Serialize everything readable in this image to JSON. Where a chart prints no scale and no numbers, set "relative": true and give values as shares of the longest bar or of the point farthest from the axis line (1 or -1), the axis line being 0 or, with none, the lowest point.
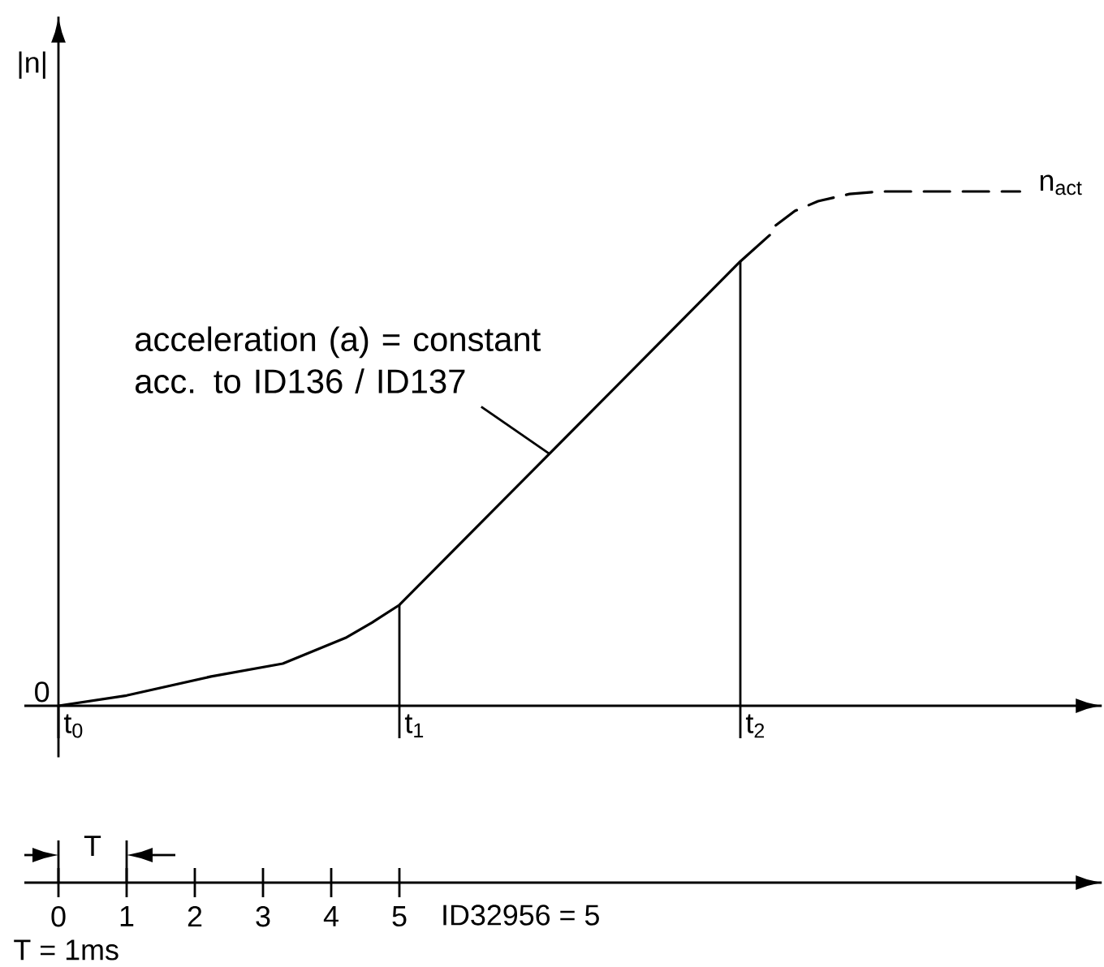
{
  "chart_data": {
    "type": "line",
    "relative": true,
    "ylabel": "|n|",
    "xlim": [
      -0.5,
      15.3
    ],
    "xticks": [
      0,
      1,
      2,
      3,
      4,
      5
    ],
    "xlabel": "ID32956 = 5",
    "series": [
      {
        "x": [
          0,
          1,
          2.24,
          3.29,
          4.21,
          4.6,
          5,
          10,
          10.43
        ],
        "values": [
          0,
          0.02,
          0.057,
          0.082,
          0.132,
          0.162,
          0.196,
          0.864,
          0.915
        ],
        "color": "#000000",
        "line_style": "solid"
      },
      {
        "name": "n$_{act}$",
        "x": [
          10.52,
          10.8,
          11.14,
          11.6,
          12.07,
          14.1
        ],
        "values": [
          0.934,
          0.962,
          0.981,
          0.995,
          1,
          1
        ],
        "color": "#000000",
        "line_style": "dashed"
      }
    ],
    "ref_lines": [
      {
        "axis": "x",
        "value": 0,
        "label": "t$_{0}$"
      },
      {
        "axis": "x",
        "value": 5,
        "label": "t$_{1}$"
      },
      {
        "axis": "x",
        "value": 10,
        "label": "t$_{2}$"
      }
    ],
    "marker": "none",
    "legend": false,
    "annotations": [
      {
        "text": "acceleration (a) = constant acc. to ID136 / ID137",
        "x": 7.2,
        "y": 0.49
      },
      "0",
      "T",
      "T = 1ms"
    ]
  }
}
